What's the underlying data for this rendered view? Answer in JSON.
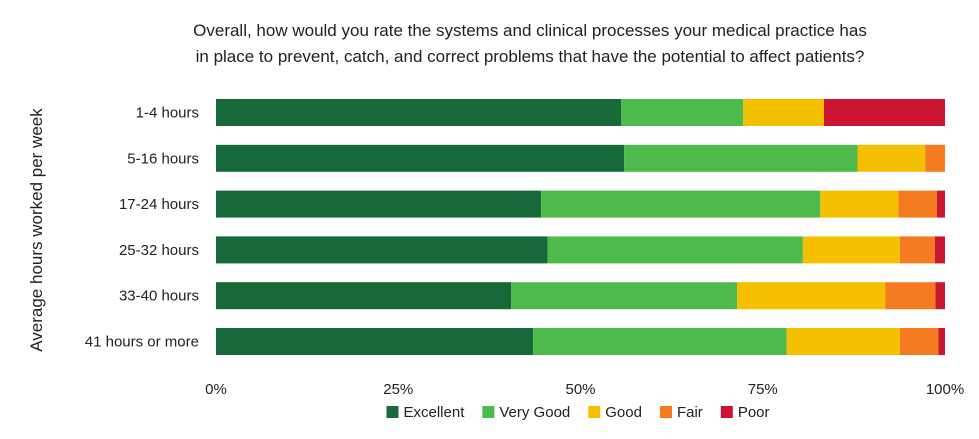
{
  "chart_data": {
    "type": "bar",
    "orientation": "horizontal",
    "stacked": true,
    "title_lines": [
      "Overall, how would you rate the systems and clinical processes your medical practice has",
      "in place to prevent, catch, and correct problems that have the potential to affect patients?"
    ],
    "ylabel": "Average hours worked per week",
    "xlabel": "",
    "xlim": [
      0,
      100
    ],
    "x_ticks": [
      "0%",
      "25%",
      "50%",
      "75%",
      "100%"
    ],
    "categories": [
      "1-4 hours",
      "5-16 hours",
      "17-24 hours",
      "25-32 hours",
      "33-40 hours",
      "41 hours or more"
    ],
    "series": [
      {
        "name": "Excellent",
        "color": "#17693a",
        "values": [
          55.6,
          56.0,
          44.6,
          45.5,
          40.5,
          43.5
        ]
      },
      {
        "name": "Very Good",
        "color": "#4cbb4c",
        "values": [
          16.7,
          32.0,
          38.3,
          35.0,
          31.0,
          34.8
        ]
      },
      {
        "name": "Good",
        "color": "#f4c000",
        "values": [
          11.1,
          9.3,
          10.7,
          13.3,
          20.3,
          15.5
        ]
      },
      {
        "name": "Fair",
        "color": "#f47b20",
        "values": [
          0,
          2.7,
          5.3,
          4.8,
          6.9,
          5.3
        ]
      },
      {
        "name": "Poor",
        "color": "#cc1433",
        "values": [
          16.6,
          0,
          1.1,
          1.4,
          1.3,
          0.9
        ]
      }
    ],
    "grid": false,
    "legend_position": "bottom"
  }
}
